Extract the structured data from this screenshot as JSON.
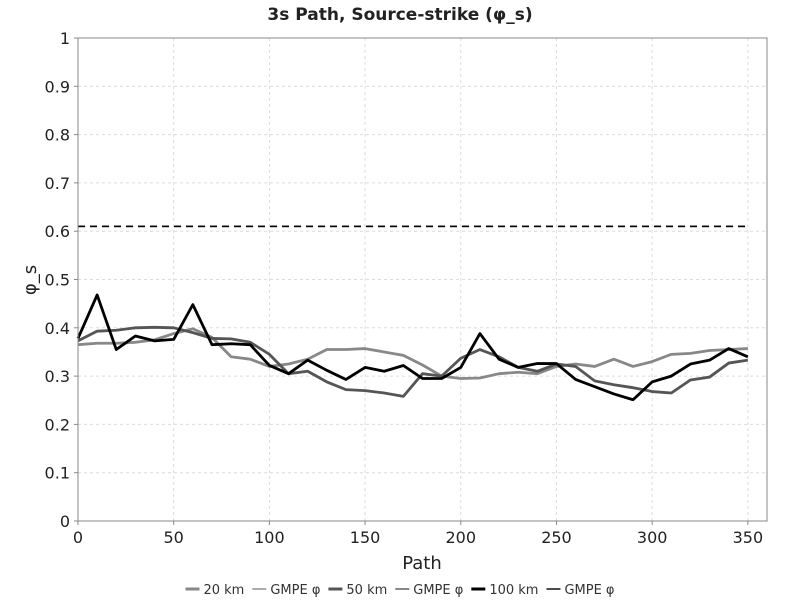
{
  "chart_data": {
    "type": "line",
    "title": "3s Path, Source-strike (φ_s)",
    "xlabel": "Path",
    "ylabel": "φ_s",
    "xlim": [
      0,
      360
    ],
    "ylim": [
      0,
      1
    ],
    "xticks": [
      0,
      50,
      100,
      150,
      200,
      250,
      300,
      350
    ],
    "yticks": [
      0,
      0.1,
      0.2,
      0.3,
      0.4,
      0.5,
      0.6,
      0.7,
      0.8,
      0.9,
      1
    ],
    "grid": true,
    "legend_position": "bottom",
    "x": [
      0,
      10,
      20,
      30,
      40,
      50,
      60,
      70,
      80,
      90,
      100,
      110,
      120,
      130,
      140,
      150,
      160,
      170,
      180,
      190,
      200,
      210,
      220,
      230,
      240,
      250,
      260,
      270,
      280,
      290,
      300,
      310,
      320,
      330,
      340,
      350
    ],
    "series": [
      {
        "name": "20 km",
        "color": "#888888",
        "style": "solid",
        "values": [
          0.365,
          0.368,
          0.368,
          0.37,
          0.375,
          0.388,
          0.398,
          0.38,
          0.34,
          0.335,
          0.32,
          0.325,
          0.335,
          0.355,
          0.355,
          0.357,
          0.35,
          0.343,
          0.323,
          0.3,
          0.295,
          0.296,
          0.305,
          0.308,
          0.305,
          0.32,
          0.325,
          0.32,
          0.335,
          0.32,
          0.33,
          0.345,
          0.347,
          0.353,
          0.355,
          0.357
        ]
      },
      {
        "name": "GMPE φ",
        "color": "#888888",
        "style": "dashed",
        "values": [
          0.61,
          0.61,
          0.61,
          0.61,
          0.61,
          0.61,
          0.61,
          0.61,
          0.61,
          0.61,
          0.61,
          0.61,
          0.61,
          0.61,
          0.61,
          0.61,
          0.61,
          0.61,
          0.61,
          0.61,
          0.61,
          0.61,
          0.61,
          0.61,
          0.61,
          0.61,
          0.61,
          0.61,
          0.61,
          0.61,
          0.61,
          0.61,
          0.61,
          0.61,
          0.61,
          0.61
        ]
      },
      {
        "name": "50 km",
        "color": "#555555",
        "style": "solid",
        "values": [
          0.373,
          0.393,
          0.395,
          0.4,
          0.401,
          0.4,
          0.39,
          0.378,
          0.377,
          0.37,
          0.345,
          0.305,
          0.31,
          0.288,
          0.272,
          0.27,
          0.265,
          0.258,
          0.305,
          0.3,
          0.337,
          0.355,
          0.34,
          0.318,
          0.31,
          0.325,
          0.32,
          0.29,
          0.282,
          0.276,
          0.268,
          0.265,
          0.292,
          0.298,
          0.327,
          0.333
        ]
      },
      {
        "name": "GMPE φ",
        "color": "#555555",
        "style": "dashed",
        "values": [
          0.61,
          0.61,
          0.61,
          0.61,
          0.61,
          0.61,
          0.61,
          0.61,
          0.61,
          0.61,
          0.61,
          0.61,
          0.61,
          0.61,
          0.61,
          0.61,
          0.61,
          0.61,
          0.61,
          0.61,
          0.61,
          0.61,
          0.61,
          0.61,
          0.61,
          0.61,
          0.61,
          0.61,
          0.61,
          0.61,
          0.61,
          0.61,
          0.61,
          0.61,
          0.61,
          0.61
        ]
      },
      {
        "name": "100 km",
        "color": "#000000",
        "style": "solid",
        "values": [
          0.378,
          0.468,
          0.355,
          0.383,
          0.373,
          0.376,
          0.448,
          0.365,
          0.367,
          0.365,
          0.322,
          0.305,
          0.333,
          0.312,
          0.293,
          0.318,
          0.31,
          0.322,
          0.295,
          0.295,
          0.318,
          0.388,
          0.335,
          0.318,
          0.326,
          0.326,
          0.293,
          0.278,
          0.263,
          0.251,
          0.288,
          0.3,
          0.325,
          0.333,
          0.357,
          0.34
        ]
      },
      {
        "name": "GMPE φ",
        "color": "#000000",
        "style": "dashed",
        "values": [
          0.61,
          0.61,
          0.61,
          0.61,
          0.61,
          0.61,
          0.61,
          0.61,
          0.61,
          0.61,
          0.61,
          0.61,
          0.61,
          0.61,
          0.61,
          0.61,
          0.61,
          0.61,
          0.61,
          0.61,
          0.61,
          0.61,
          0.61,
          0.61,
          0.61,
          0.61,
          0.61,
          0.61,
          0.61,
          0.61,
          0.61,
          0.61,
          0.61,
          0.61,
          0.61,
          0.61
        ]
      }
    ]
  }
}
